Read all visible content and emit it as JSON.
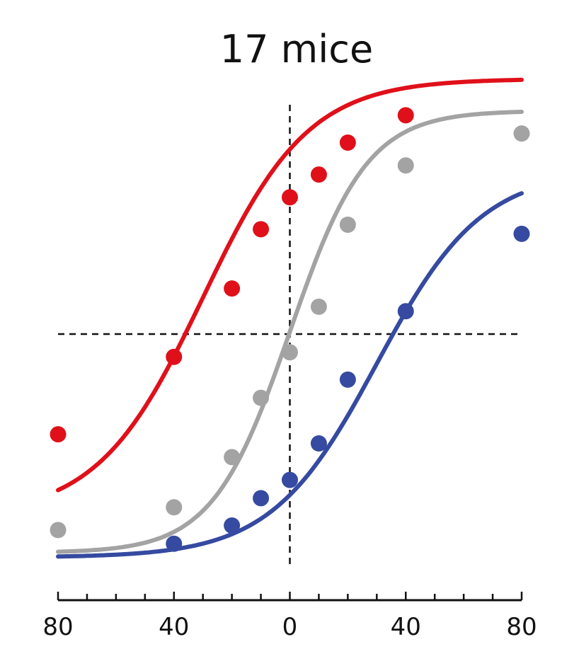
{
  "chart_data": {
    "type": "line",
    "title": "17 mice",
    "xlabel": "",
    "ylabel": "",
    "x_tick_labels": [
      "80",
      "40",
      "0",
      "40",
      "80"
    ],
    "x_tick_values": [
      -80,
      -40,
      0,
      40,
      80
    ],
    "xlim": [
      -80,
      80
    ],
    "ylim": [
      0,
      1
    ],
    "grid": false,
    "reference_lines": {
      "vertical_x": 0,
      "horizontal_y": 0.5
    },
    "series": [
      {
        "color": "#e0101a",
        "points": {
          "x": [
            -80,
            -40,
            -20,
            -10,
            0,
            10,
            20,
            40
          ],
          "y": [
            0.28,
            0.45,
            0.6,
            0.73,
            0.8,
            0.85,
            0.92,
            0.98
          ]
        },
        "fit": {
          "x0": -30,
          "k": 0.055,
          "lower": 0.1,
          "upper": 1.06
        }
      },
      {
        "color": "#a3a3a3",
        "points": {
          "x": [
            -80,
            -40,
            -20,
            -10,
            0,
            10,
            20,
            40,
            80
          ],
          "y": [
            0.07,
            0.12,
            0.23,
            0.36,
            0.46,
            0.56,
            0.74,
            0.87,
            0.94
          ]
        },
        "fit": {
          "x0": 0,
          "k": 0.075,
          "lower": 0.02,
          "upper": 0.99
        }
      },
      {
        "color": "#354aa0",
        "points": {
          "x": [
            -40,
            -20,
            -10,
            0,
            10,
            20,
            40,
            80
          ],
          "y": [
            0.04,
            0.08,
            0.14,
            0.18,
            0.26,
            0.4,
            0.55,
            0.72
          ]
        },
        "fit": {
          "x0": 30,
          "k": 0.055,
          "lower": 0.01,
          "upper": 0.86
        }
      }
    ]
  }
}
